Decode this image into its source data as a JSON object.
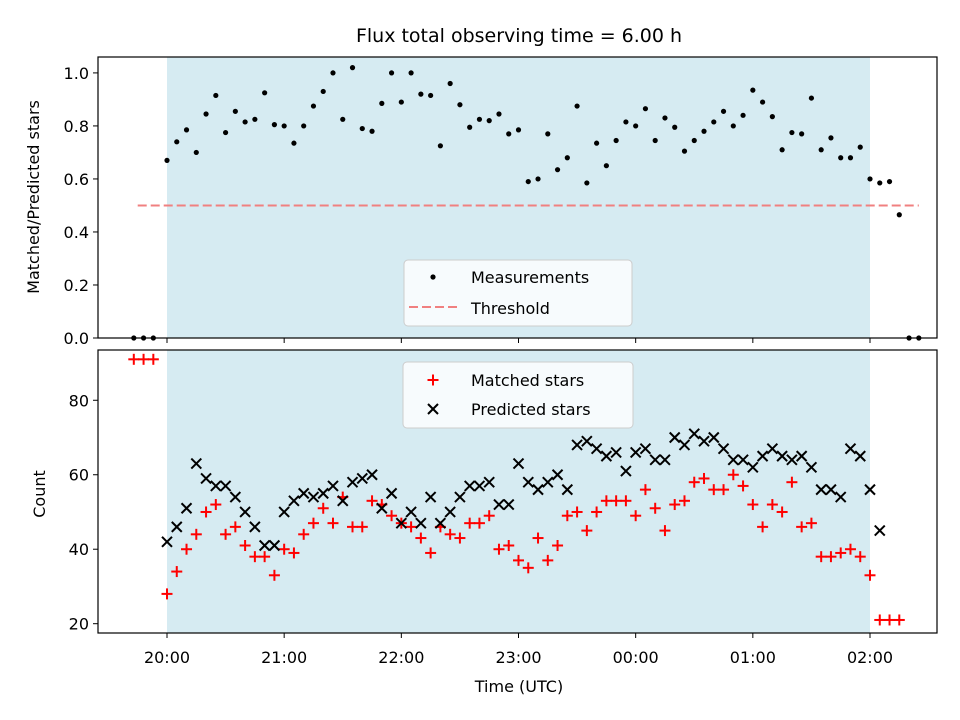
{
  "chart_data": [
    {
      "type": "scatter",
      "title": "Flux total observing time = 6.00 h",
      "xlabel": "",
      "ylabel": "Matched/Predicted stars",
      "ylim": [
        0,
        1.06
      ],
      "yticks": [
        "0.0",
        "0.2",
        "0.4",
        "0.6",
        "0.8",
        "1.0"
      ],
      "shaded_region": {
        "from": "20:00",
        "to": "02:00",
        "color": "#add8e6"
      },
      "legend_position": "lower center",
      "series": [
        {
          "name": "Measurements",
          "marker": "dot",
          "color": "#000000",
          "points": [
            [
              "19:43",
              0.0
            ],
            [
              "19:48",
              0.0
            ],
            [
              "19:53",
              0.0
            ],
            [
              "20:00",
              0.67
            ],
            [
              "20:05",
              0.74
            ],
            [
              "20:10",
              0.785
            ],
            [
              "20:15",
              0.7
            ],
            [
              "20:20",
              0.845
            ],
            [
              "20:25",
              0.915
            ],
            [
              "20:30",
              0.775
            ],
            [
              "20:35",
              0.855
            ],
            [
              "20:40",
              0.815
            ],
            [
              "20:45",
              0.825
            ],
            [
              "20:50",
              0.925
            ],
            [
              "20:55",
              0.805
            ],
            [
              "21:00",
              0.8
            ],
            [
              "21:05",
              0.735
            ],
            [
              "21:10",
              0.8
            ],
            [
              "21:15",
              0.875
            ],
            [
              "21:20",
              0.93
            ],
            [
              "21:25",
              1.0
            ],
            [
              "21:30",
              0.825
            ],
            [
              "21:35",
              1.02
            ],
            [
              "21:40",
              0.79
            ],
            [
              "21:45",
              0.78
            ],
            [
              "21:50",
              0.885
            ],
            [
              "21:55",
              1.0
            ],
            [
              "22:00",
              0.89
            ],
            [
              "22:05",
              1.0
            ],
            [
              "22:10",
              0.92
            ],
            [
              "22:15",
              0.915
            ],
            [
              "22:20",
              0.725
            ],
            [
              "22:25",
              0.96
            ],
            [
              "22:30",
              0.88
            ],
            [
              "22:35",
              0.795
            ],
            [
              "22:40",
              0.825
            ],
            [
              "22:45",
              0.82
            ],
            [
              "22:50",
              0.845
            ],
            [
              "22:55",
              0.77
            ],
            [
              "23:00",
              0.785
            ],
            [
              "23:05",
              0.59
            ],
            [
              "23:10",
              0.6
            ],
            [
              "23:15",
              0.77
            ],
            [
              "23:20",
              0.635
            ],
            [
              "23:25",
              0.68
            ],
            [
              "23:30",
              0.875
            ],
            [
              "23:35",
              0.585
            ],
            [
              "23:40",
              0.735
            ],
            [
              "23:45",
              0.65
            ],
            [
              "23:50",
              0.745
            ],
            [
              "23:55",
              0.815
            ],
            [
              "00:00",
              0.8
            ],
            [
              "00:05",
              0.865
            ],
            [
              "00:10",
              0.745
            ],
            [
              "00:15",
              0.83
            ],
            [
              "00:20",
              0.795
            ],
            [
              "00:25",
              0.705
            ],
            [
              "00:30",
              0.745
            ],
            [
              "00:35",
              0.78
            ],
            [
              "00:40",
              0.815
            ],
            [
              "00:45",
              0.855
            ],
            [
              "00:50",
              0.8
            ],
            [
              "00:55",
              0.84
            ],
            [
              "01:00",
              0.935
            ],
            [
              "01:05",
              0.89
            ],
            [
              "01:10",
              0.835
            ],
            [
              "01:15",
              0.71
            ],
            [
              "01:20",
              0.775
            ],
            [
              "01:25",
              0.77
            ],
            [
              "01:30",
              0.905
            ],
            [
              "01:35",
              0.71
            ],
            [
              "01:40",
              0.755
            ],
            [
              "01:45",
              0.68
            ],
            [
              "01:50",
              0.68
            ],
            [
              "01:55",
              0.72
            ],
            [
              "02:00",
              0.6
            ],
            [
              "02:05",
              0.585
            ],
            [
              "02:10",
              0.59
            ],
            [
              "02:15",
              0.465
            ],
            [
              "02:20",
              0.0
            ],
            [
              "02:25",
              0.0
            ]
          ]
        },
        {
          "name": "Threshold",
          "style": "dashed",
          "color": "#f08080",
          "points": [
            [
              "19:45",
              0.5
            ],
            [
              "02:25",
              0.5
            ]
          ]
        }
      ]
    },
    {
      "type": "scatter",
      "xlabel": "Time (UTC)",
      "ylabel": "Count",
      "ylim": [
        17.5,
        93.5
      ],
      "yticks": [
        "20",
        "40",
        "60",
        "80"
      ],
      "xticks": [
        "20:00",
        "21:00",
        "22:00",
        "23:00",
        "00:00",
        "01:00",
        "02:00"
      ],
      "legend_position": "upper center",
      "series": [
        {
          "name": "Matched stars",
          "marker": "plus",
          "color": "#ff0000",
          "points": [
            [
              "19:43",
              91
            ],
            [
              "19:48",
              91
            ],
            [
              "19:53",
              91
            ],
            [
              "20:00",
              28
            ],
            [
              "20:05",
              34
            ],
            [
              "20:10",
              40
            ],
            [
              "20:15",
              44
            ],
            [
              "20:20",
              50
            ],
            [
              "20:25",
              52
            ],
            [
              "20:30",
              44
            ],
            [
              "20:35",
              46
            ],
            [
              "20:40",
              41
            ],
            [
              "20:45",
              38
            ],
            [
              "20:50",
              38
            ],
            [
              "20:55",
              33
            ],
            [
              "21:00",
              40
            ],
            [
              "21:05",
              39
            ],
            [
              "21:10",
              44
            ],
            [
              "21:15",
              47
            ],
            [
              "21:20",
              51
            ],
            [
              "21:25",
              47
            ],
            [
              "21:30",
              54
            ],
            [
              "21:35",
              46
            ],
            [
              "21:40",
              46
            ],
            [
              "21:45",
              53
            ],
            [
              "21:50",
              52
            ],
            [
              "21:55",
              49
            ],
            [
              "22:00",
              47
            ],
            [
              "22:05",
              46
            ],
            [
              "22:10",
              43
            ],
            [
              "22:15",
              39
            ],
            [
              "22:20",
              46
            ],
            [
              "22:25",
              44
            ],
            [
              "22:30",
              43
            ],
            [
              "22:35",
              47
            ],
            [
              "22:40",
              47
            ],
            [
              "22:45",
              49
            ],
            [
              "22:50",
              40
            ],
            [
              "22:55",
              41
            ],
            [
              "23:00",
              37
            ],
            [
              "23:05",
              35
            ],
            [
              "23:10",
              43
            ],
            [
              "23:15",
              37
            ],
            [
              "23:20",
              41
            ],
            [
              "23:25",
              49
            ],
            [
              "23:30",
              50
            ],
            [
              "23:35",
              45
            ],
            [
              "23:40",
              50
            ],
            [
              "23:45",
              53
            ],
            [
              "23:50",
              53
            ],
            [
              "23:55",
              53
            ],
            [
              "00:00",
              49
            ],
            [
              "00:05",
              56
            ],
            [
              "00:10",
              51
            ],
            [
              "00:15",
              45
            ],
            [
              "00:20",
              52
            ],
            [
              "00:25",
              53
            ],
            [
              "00:30",
              58
            ],
            [
              "00:35",
              59
            ],
            [
              "00:40",
              56
            ],
            [
              "00:45",
              56
            ],
            [
              "00:50",
              60
            ],
            [
              "00:55",
              57
            ],
            [
              "01:00",
              52
            ],
            [
              "01:05",
              46
            ],
            [
              "01:10",
              52
            ],
            [
              "01:15",
              50
            ],
            [
              "01:20",
              58
            ],
            [
              "01:25",
              46
            ],
            [
              "01:30",
              47
            ],
            [
              "01:35",
              38
            ],
            [
              "01:40",
              38
            ],
            [
              "01:45",
              39
            ],
            [
              "01:50",
              40
            ],
            [
              "01:55",
              38
            ],
            [
              "02:00",
              33
            ],
            [
              "02:05",
              21
            ],
            [
              "02:10",
              21
            ],
            [
              "02:15",
              21
            ]
          ]
        },
        {
          "name": "Predicted stars",
          "marker": "x",
          "color": "#000000",
          "points": [
            [
              "20:00",
              42
            ],
            [
              "20:05",
              46
            ],
            [
              "20:10",
              51
            ],
            [
              "20:15",
              63
            ],
            [
              "20:20",
              59
            ],
            [
              "20:25",
              57
            ],
            [
              "20:30",
              57
            ],
            [
              "20:35",
              54
            ],
            [
              "20:40",
              50
            ],
            [
              "20:45",
              46
            ],
            [
              "20:50",
              41
            ],
            [
              "20:55",
              41
            ],
            [
              "21:00",
              50
            ],
            [
              "21:05",
              53
            ],
            [
              "21:10",
              55
            ],
            [
              "21:15",
              54
            ],
            [
              "21:20",
              55
            ],
            [
              "21:25",
              57
            ],
            [
              "21:30",
              53
            ],
            [
              "21:35",
              58
            ],
            [
              "21:40",
              59
            ],
            [
              "21:45",
              60
            ],
            [
              "21:50",
              51
            ],
            [
              "21:55",
              55
            ],
            [
              "22:00",
              47
            ],
            [
              "22:05",
              50
            ],
            [
              "22:10",
              47
            ],
            [
              "22:15",
              54
            ],
            [
              "22:20",
              47
            ],
            [
              "22:25",
              50
            ],
            [
              "22:30",
              54
            ],
            [
              "22:35",
              57
            ],
            [
              "22:40",
              57
            ],
            [
              "22:45",
              58
            ],
            [
              "22:50",
              52
            ],
            [
              "22:55",
              52
            ],
            [
              "23:00",
              63
            ],
            [
              "23:05",
              58
            ],
            [
              "23:10",
              56
            ],
            [
              "23:15",
              58
            ],
            [
              "23:20",
              60
            ],
            [
              "23:25",
              56
            ],
            [
              "23:30",
              68
            ],
            [
              "23:35",
              69
            ],
            [
              "23:40",
              67
            ],
            [
              "23:45",
              65
            ],
            [
              "23:50",
              66
            ],
            [
              "23:55",
              61
            ],
            [
              "00:00",
              66
            ],
            [
              "00:05",
              67
            ],
            [
              "00:10",
              64
            ],
            [
              "00:15",
              64
            ],
            [
              "00:20",
              70
            ],
            [
              "00:25",
              68
            ],
            [
              "00:30",
              71
            ],
            [
              "00:35",
              69
            ],
            [
              "00:40",
              70
            ],
            [
              "00:45",
              67
            ],
            [
              "00:50",
              64
            ],
            [
              "00:55",
              64
            ],
            [
              "01:00",
              62
            ],
            [
              "01:05",
              65
            ],
            [
              "01:10",
              67
            ],
            [
              "01:15",
              65
            ],
            [
              "01:20",
              64
            ],
            [
              "01:25",
              65
            ],
            [
              "01:30",
              62
            ],
            [
              "01:35",
              56
            ],
            [
              "01:40",
              56
            ],
            [
              "01:45",
              54
            ],
            [
              "01:50",
              67
            ],
            [
              "01:55",
              65
            ],
            [
              "02:00",
              56
            ],
            [
              "02:05",
              45
            ]
          ]
        }
      ]
    }
  ]
}
